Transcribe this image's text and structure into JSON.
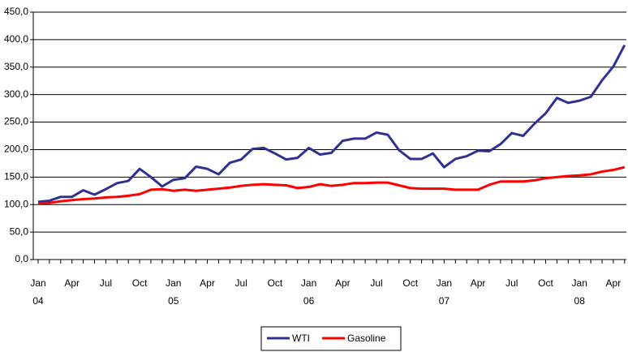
{
  "chart_data": {
    "type": "line",
    "categories": [
      "Jan",
      null,
      null,
      "Apr",
      null,
      null,
      "Jul",
      null,
      null,
      "Oct",
      null,
      null,
      "Jan",
      null,
      null,
      "Apr",
      null,
      null,
      "Jul",
      null,
      null,
      "Oct",
      null,
      null,
      "Jan",
      null,
      null,
      "Apr",
      null,
      null,
      "Jul",
      null,
      null,
      "Oct",
      null,
      null,
      "Jan",
      null,
      null,
      "Apr",
      null,
      null,
      "Jul",
      null,
      null,
      "Oct",
      null,
      null,
      "Jan",
      null,
      null,
      "Apr",
      null
    ],
    "years": [
      "04",
      null,
      null,
      null,
      null,
      null,
      null,
      null,
      null,
      null,
      null,
      null,
      "05",
      null,
      null,
      null,
      null,
      null,
      null,
      null,
      null,
      null,
      null,
      null,
      "06",
      null,
      null,
      null,
      null,
      null,
      null,
      null,
      null,
      null,
      null,
      null,
      "07",
      null,
      null,
      null,
      null,
      null,
      null,
      null,
      null,
      null,
      null,
      null,
      "08",
      null,
      null,
      null,
      null
    ],
    "series": [
      {
        "name": "WTI",
        "color": "#2e3192",
        "values": [
          105,
          107,
          114,
          114,
          126,
          118,
          128,
          139,
          143,
          165,
          150,
          133,
          145,
          148,
          169,
          165,
          155,
          176,
          182,
          201,
          203,
          193,
          182,
          185,
          203,
          191,
          194,
          216,
          220,
          220,
          231,
          227,
          199,
          183,
          183,
          193,
          168,
          183,
          188,
          198,
          197,
          210,
          230,
          225,
          247,
          266,
          294,
          285,
          289,
          296,
          326,
          351,
          390
        ]
      },
      {
        "name": "Gasoline",
        "color": "#ff0000",
        "values": [
          102,
          103,
          106,
          108,
          110,
          111,
          113,
          114,
          116,
          119,
          127,
          128,
          125,
          127,
          125,
          127,
          129,
          131,
          134,
          136,
          137,
          136,
          135,
          130,
          132,
          137,
          134,
          136,
          139,
          139,
          140,
          140,
          135,
          130,
          129,
          129,
          129,
          127,
          127,
          127,
          136,
          142,
          142,
          142,
          144,
          148,
          150,
          152,
          153,
          155,
          160,
          163,
          168
        ]
      }
    ],
    "ylim": [
      0,
      450
    ],
    "yticks": [
      {
        "value": 0,
        "label": "0,0"
      },
      {
        "value": 50,
        "label": "50,0"
      },
      {
        "value": 100,
        "label": "100,0"
      },
      {
        "value": 150,
        "label": "150,0"
      },
      {
        "value": 200,
        "label": "200,0"
      },
      {
        "value": 250,
        "label": "250,0"
      },
      {
        "value": 300,
        "label": "300,0"
      },
      {
        "value": 350,
        "label": "350,0"
      },
      {
        "value": 400,
        "label": "400,0"
      },
      {
        "value": 450,
        "label": "450,0"
      }
    ],
    "grid": true
  }
}
